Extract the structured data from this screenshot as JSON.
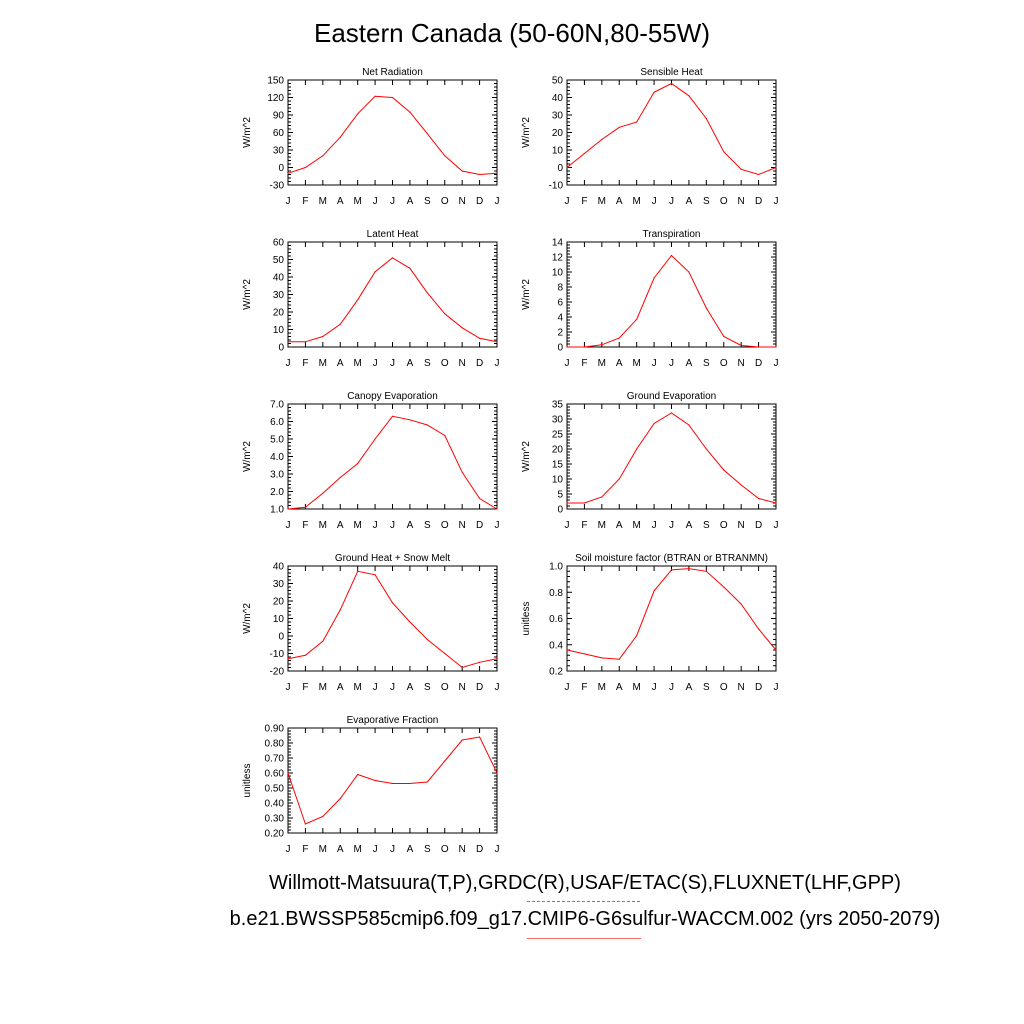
{
  "title": "Eastern Canada (50-60N,80-55W)",
  "footer": {
    "line1": "Willmott-Matsuura(T,P),GRDC(R),USAF/ETAC(S),FLUXNET(LHF,GPP)",
    "line2": "b.e21.BWSSP585cmip6.f09_g17.CMIP6-G6sulfur-WACCM.002 (yrs 2050-2079)"
  },
  "colors": {
    "series": "#ff0000",
    "axis": "#000000"
  },
  "chart_data": [
    {
      "type": "line",
      "title": "Net Radiation",
      "ylabel": "W/m^2",
      "x": [
        "J",
        "F",
        "M",
        "A",
        "M",
        "J",
        "J",
        "A",
        "S",
        "O",
        "N",
        "D",
        "J"
      ],
      "ylim": [
        -30,
        150
      ],
      "yticks": [
        "-30",
        "0",
        "30",
        "60",
        "90",
        "120",
        "150"
      ],
      "series": [
        {
          "values": [
            -10,
            0,
            20,
            52,
            92,
            122,
            120,
            95,
            58,
            20,
            -6,
            -12,
            -10
          ]
        }
      ]
    },
    {
      "type": "line",
      "title": "Sensible Heat",
      "ylabel": "W/m^2",
      "x": [
        "J",
        "F",
        "M",
        "A",
        "M",
        "J",
        "J",
        "A",
        "S",
        "O",
        "N",
        "D",
        "J"
      ],
      "ylim": [
        -10,
        50
      ],
      "yticks": [
        "-10",
        "0",
        "10",
        "20",
        "30",
        "40",
        "50"
      ],
      "series": [
        {
          "values": [
            0,
            8,
            16,
            23,
            26,
            43,
            48,
            41,
            28,
            9,
            -1,
            -4,
            0
          ]
        }
      ]
    },
    {
      "type": "line",
      "title": "Latent Heat",
      "ylabel": "W/m^2",
      "x": [
        "J",
        "F",
        "M",
        "A",
        "M",
        "J",
        "J",
        "A",
        "S",
        "O",
        "N",
        "D",
        "J"
      ],
      "ylim": [
        0,
        60
      ],
      "yticks": [
        "0",
        "10",
        "20",
        "30",
        "40",
        "50",
        "60"
      ],
      "series": [
        {
          "values": [
            3,
            3,
            6,
            13,
            27,
            43,
            51,
            45,
            31,
            19,
            11,
            5,
            3
          ]
        }
      ]
    },
    {
      "type": "line",
      "title": "Transpiration",
      "ylabel": "W/m^2",
      "x": [
        "J",
        "F",
        "M",
        "A",
        "M",
        "J",
        "J",
        "A",
        "S",
        "O",
        "N",
        "D",
        "J"
      ],
      "ylim": [
        0,
        14
      ],
      "yticks": [
        "0",
        "2",
        "4",
        "6",
        "8",
        "10",
        "12",
        "14"
      ],
      "series": [
        {
          "values": [
            0,
            0,
            0.3,
            1.2,
            3.7,
            9.2,
            12.2,
            10.0,
            5.2,
            1.4,
            0.2,
            0,
            0
          ]
        }
      ]
    },
    {
      "type": "line",
      "title": "Canopy Evaporation",
      "ylabel": "W/m^2",
      "x": [
        "J",
        "F",
        "M",
        "A",
        "M",
        "J",
        "J",
        "A",
        "S",
        "O",
        "N",
        "D",
        "J"
      ],
      "ylim": [
        1.0,
        7.0
      ],
      "yticks": [
        "1.0",
        "2.0",
        "3.0",
        "4.0",
        "5.0",
        "6.0",
        "7.0"
      ],
      "series": [
        {
          "values": [
            1.0,
            1.1,
            1.9,
            2.8,
            3.6,
            5.0,
            6.3,
            6.1,
            5.8,
            5.2,
            3.1,
            1.6,
            1.0
          ]
        }
      ]
    },
    {
      "type": "line",
      "title": "Ground Evaporation",
      "ylabel": "W/m^2",
      "x": [
        "J",
        "F",
        "M",
        "A",
        "M",
        "J",
        "J",
        "A",
        "S",
        "O",
        "N",
        "D",
        "J"
      ],
      "ylim": [
        0,
        35
      ],
      "yticks": [
        "0",
        "5",
        "10",
        "15",
        "20",
        "25",
        "30",
        "35"
      ],
      "series": [
        {
          "values": [
            2,
            2,
            4,
            10,
            20,
            28.5,
            32,
            28,
            20,
            13,
            8,
            3.5,
            2
          ]
        }
      ]
    },
    {
      "type": "line",
      "title": "Ground Heat + Snow Melt",
      "ylabel": "W/m^2",
      "x": [
        "J",
        "F",
        "M",
        "A",
        "M",
        "J",
        "J",
        "A",
        "S",
        "O",
        "N",
        "D",
        "J"
      ],
      "ylim": [
        -20,
        40
      ],
      "yticks": [
        "-20",
        "-10",
        "0",
        "10",
        "20",
        "30",
        "40"
      ],
      "series": [
        {
          "values": [
            -13,
            -11,
            -3,
            15,
            37,
            35,
            19,
            8,
            -2,
            -10,
            -18,
            -15,
            -13
          ]
        }
      ]
    },
    {
      "type": "line",
      "title": "Soil moisture factor (BTRAN or BTRANMN)",
      "ylabel": "unitless",
      "x": [
        "J",
        "F",
        "M",
        "A",
        "M",
        "J",
        "J",
        "A",
        "S",
        "O",
        "N",
        "D",
        "J"
      ],
      "ylim": [
        0.2,
        1.0
      ],
      "yticks": [
        "0.2",
        "0.4",
        "0.6",
        "0.8",
        "1.0"
      ],
      "series": [
        {
          "values": [
            0.36,
            0.33,
            0.3,
            0.29,
            0.47,
            0.81,
            0.97,
            0.98,
            0.96,
            0.84,
            0.71,
            0.52,
            0.36
          ]
        }
      ]
    },
    {
      "type": "line",
      "title": "Evaporative Fraction",
      "ylabel": "unitless",
      "x": [
        "J",
        "F",
        "M",
        "A",
        "M",
        "J",
        "J",
        "A",
        "S",
        "O",
        "N",
        "D",
        "J"
      ],
      "ylim": [
        0.2,
        0.9
      ],
      "yticks": [
        "0.20",
        "0.30",
        "0.40",
        "0.50",
        "0.60",
        "0.70",
        "0.80",
        "0.90"
      ],
      "series": [
        {
          "values": [
            0.6,
            0.26,
            0.31,
            0.43,
            0.59,
            0.55,
            0.53,
            0.53,
            0.54,
            0.68,
            0.82,
            0.84,
            0.6
          ]
        }
      ]
    }
  ]
}
